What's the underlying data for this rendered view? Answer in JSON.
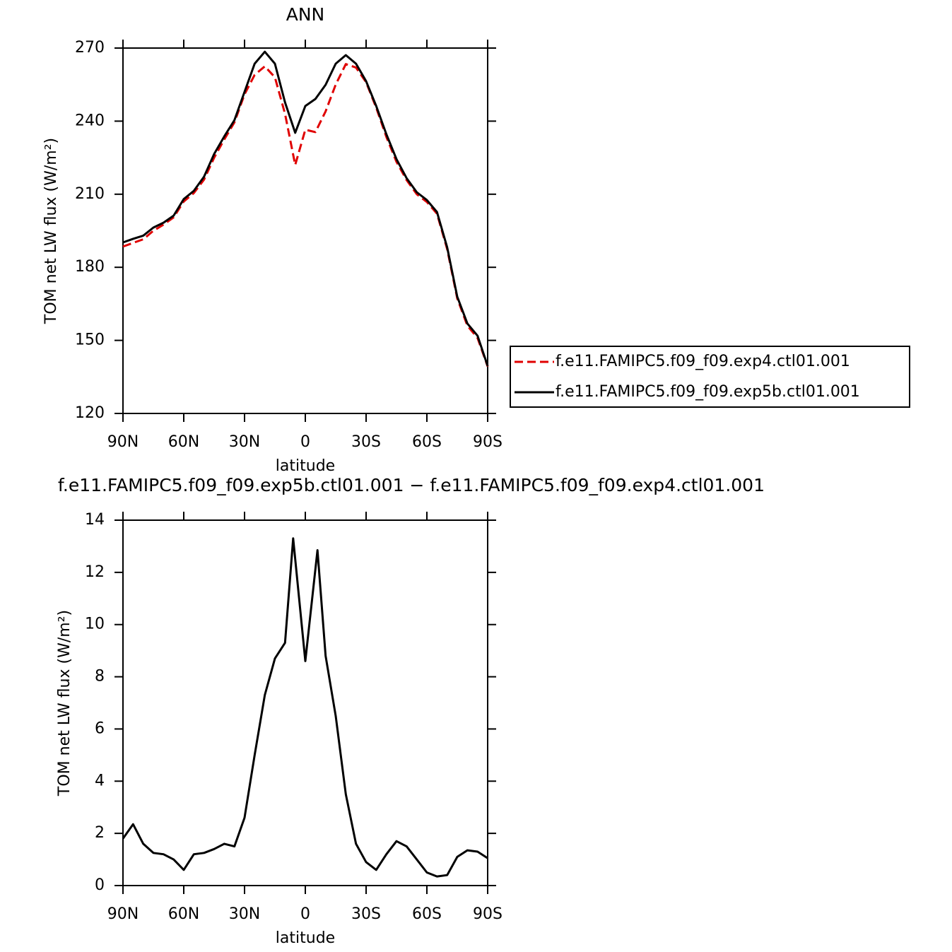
{
  "chart_data": [
    {
      "type": "line",
      "title": "ANN",
      "xlabel": "latitude",
      "ylabel": "TOM net LW flux (W/m²)",
      "x": [
        90,
        85,
        80,
        75,
        70,
        65,
        60,
        55,
        50,
        45,
        40,
        35,
        30,
        25,
        20,
        15,
        10,
        5,
        0,
        -5,
        -10,
        -15,
        -20,
        -25,
        -30,
        -35,
        -40,
        -45,
        -50,
        -55,
        -60,
        -65,
        -70,
        -75,
        -80,
        -85,
        -90
      ],
      "series": [
        {
          "name": "f.e11.FAMIPC5.f09_f09.exp4.ctl01.001",
          "color": "#e00000",
          "line_style": "dashed",
          "values": [
            188.5,
            190,
            191.5,
            195,
            197.5,
            200.5,
            207,
            210.5,
            216,
            225,
            232.5,
            239.5,
            251,
            259,
            262.5,
            258,
            243,
            222,
            236.5,
            235.5,
            244,
            255,
            263.4,
            262,
            256,
            245.5,
            233.5,
            223.3,
            215.8,
            210,
            206.8,
            202,
            187.5,
            167.2,
            156,
            151,
            139.3
          ]
        },
        {
          "name": "f.e11.FAMIPC5.f09_f09.exp5b.ctl01.001",
          "color": "#000000",
          "line_style": "solid",
          "values": [
            190.2,
            191.7,
            193,
            196.3,
            198.3,
            201.2,
            208,
            211.4,
            217.2,
            226.5,
            233.7,
            240.4,
            252,
            263.6,
            268.5,
            263.6,
            247.7,
            235.2,
            246.2,
            249.1,
            254.9,
            263.6,
            267.1,
            263.6,
            256.4,
            246.2,
            234.6,
            224.4,
            216.6,
            210.8,
            207.6,
            202.7,
            188.2,
            167.9,
            156.9,
            151.9,
            139.5
          ]
        }
      ],
      "xlim": [
        90,
        -90
      ],
      "ylim": [
        120,
        270
      ],
      "xticks": [
        {
          "value": 90,
          "label": "90N"
        },
        {
          "value": 60,
          "label": "60N"
        },
        {
          "value": 30,
          "label": "30N"
        },
        0,
        {
          "value": -30,
          "label": "30S"
        },
        {
          "value": -60,
          "label": "60S"
        },
        {
          "value": -90,
          "label": "90S"
        }
      ],
      "yticks": [
        120,
        150,
        180,
        210,
        240,
        270
      ],
      "legend": "right"
    },
    {
      "type": "line",
      "title": "f.e11.FAMIPC5.f09_f09.exp5b.ctl01.001 − f.e11.FAMIPC5.f09_f09.exp4.ctl01.001",
      "xlabel": "latitude",
      "ylabel": "TOM net LW flux (W/m²)",
      "x": [
        90,
        85,
        80,
        75,
        70,
        65,
        60,
        55,
        50,
        45,
        40,
        35,
        30,
        25,
        20,
        15,
        10,
        6,
        0,
        -6,
        -10,
        -15,
        -20,
        -25,
        -30,
        -35,
        -40,
        -45,
        -50,
        -55,
        -60,
        -65,
        -70,
        -75,
        -80,
        -85,
        -90
      ],
      "values": [
        1.8,
        2.35,
        1.6,
        1.25,
        1.2,
        1.0,
        0.6,
        1.2,
        1.25,
        1.4,
        1.6,
        1.5,
        2.6,
        5.0,
        7.3,
        8.7,
        9.3,
        13.3,
        8.6,
        12.85,
        8.8,
        6.5,
        3.5,
        1.6,
        0.9,
        0.6,
        1.2,
        1.7,
        1.5,
        1.0,
        0.5,
        0.35,
        0.4,
        1.1,
        1.35,
        1.3,
        1.05
      ],
      "color": "#000000",
      "xlim": [
        90,
        -90
      ],
      "ylim": [
        0,
        14
      ],
      "xticks": [
        {
          "value": 90,
          "label": "90N"
        },
        {
          "value": 60,
          "label": "60N"
        },
        {
          "value": 30,
          "label": "30N"
        },
        0,
        {
          "value": -30,
          "label": "30S"
        },
        {
          "value": -60,
          "label": "60S"
        },
        {
          "value": -90,
          "label": "90S"
        }
      ],
      "yticks": [
        0,
        2,
        4,
        6,
        8,
        10,
        12,
        14
      ]
    }
  ]
}
